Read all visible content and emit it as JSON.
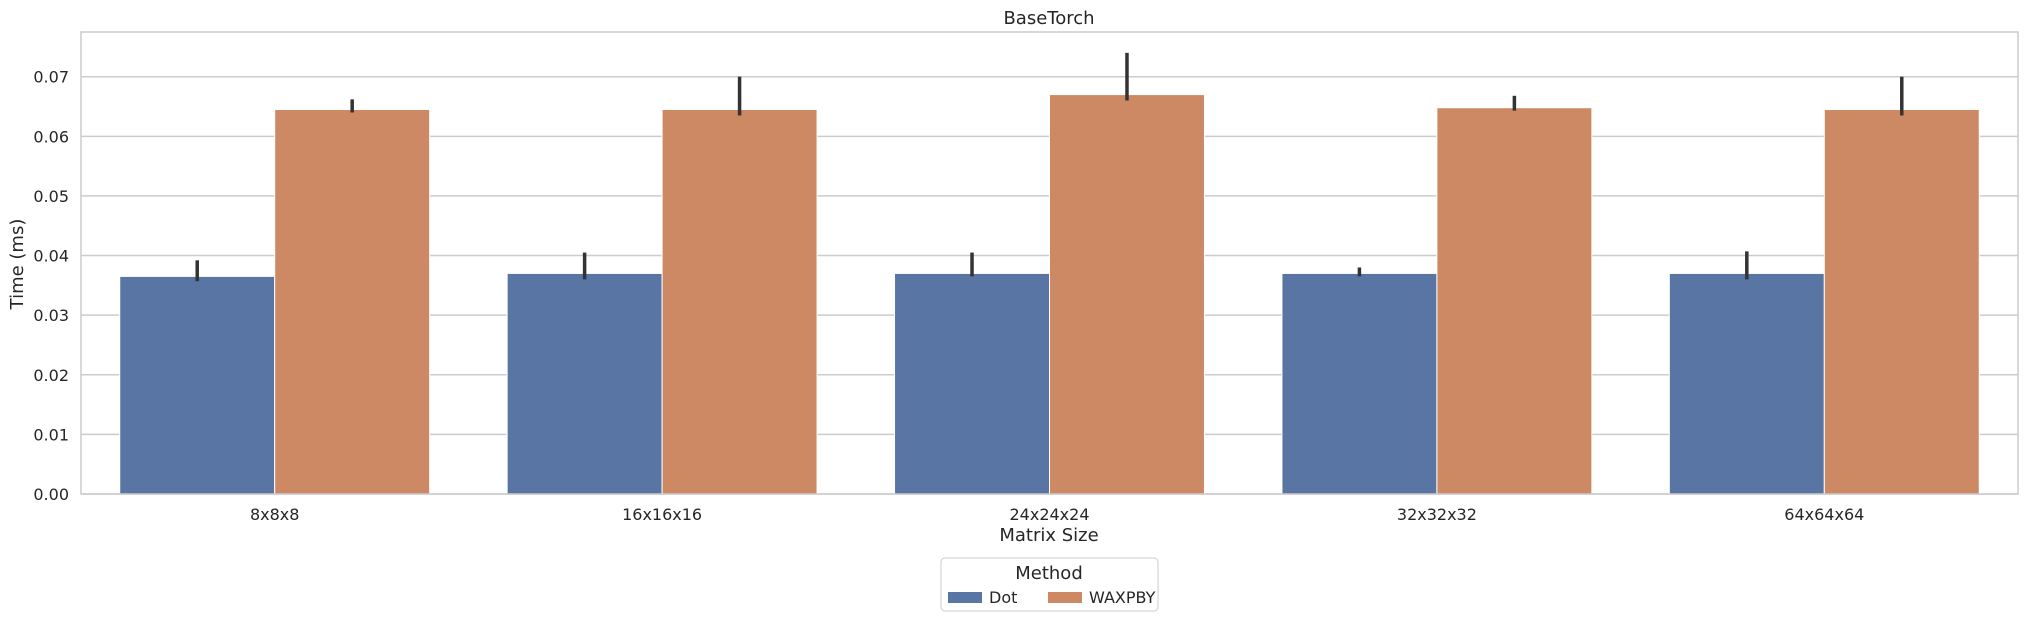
{
  "chart_data": {
    "type": "bar",
    "title": "BaseTorch",
    "xlabel": "Matrix Size",
    "ylabel": "Time (ms)",
    "categories": [
      "8x8x8",
      "16x16x16",
      "24x24x24",
      "32x32x32",
      "64x64x64"
    ],
    "ylim": [
      0,
      0.0775
    ],
    "yticks": [
      "0.00",
      "0.01",
      "0.02",
      "0.03",
      "0.04",
      "0.05",
      "0.06",
      "0.07"
    ],
    "grid": "horizontal",
    "legend": {
      "title": "Method",
      "placement": "bottom-center, below axes"
    },
    "series": [
      {
        "name": "Dot",
        "color": "#5875a4",
        "values": [
          0.0365,
          0.037,
          0.037,
          0.037,
          0.037
        ],
        "error_low": [
          0.0357,
          0.036,
          0.0365,
          0.0365,
          0.036
        ],
        "error_high": [
          0.0392,
          0.0405,
          0.0405,
          0.038,
          0.0407
        ]
      },
      {
        "name": "WAXPBY",
        "color": "#cc8963",
        "values": [
          0.0645,
          0.0645,
          0.067,
          0.0648,
          0.0645
        ],
        "error_low": [
          0.064,
          0.0635,
          0.066,
          0.0643,
          0.0635
        ],
        "error_high": [
          0.0662,
          0.07,
          0.074,
          0.0668,
          0.07
        ]
      }
    ],
    "error_bar_color": "#333333"
  }
}
